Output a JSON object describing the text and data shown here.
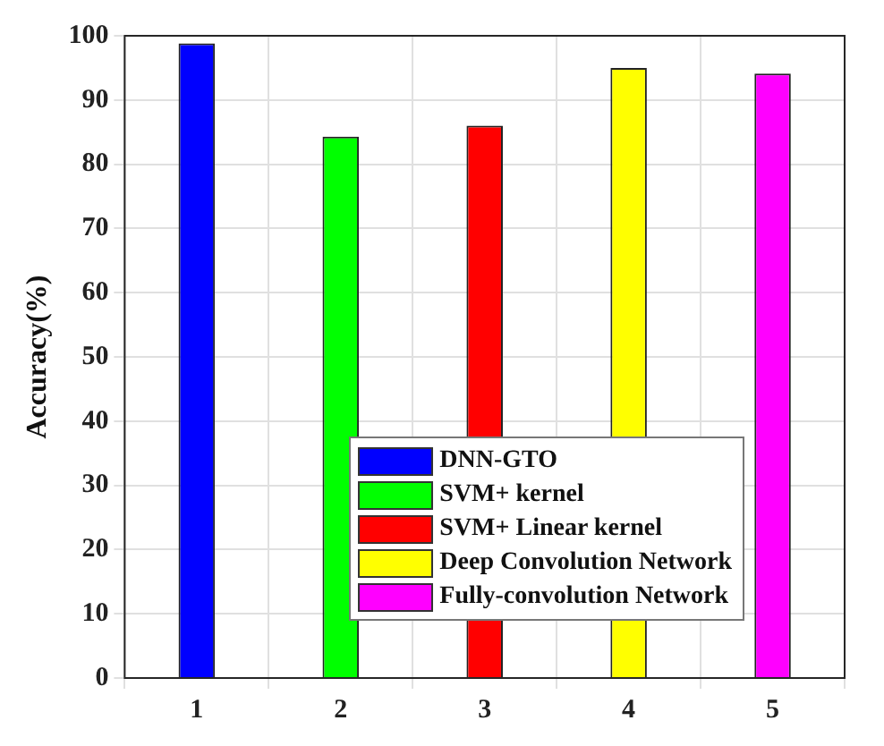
{
  "chart_data": {
    "type": "bar",
    "ylabel": "Accuracy(%)",
    "categories": [
      "1",
      "2",
      "3",
      "4",
      "5"
    ],
    "series": [
      {
        "name": "DNN-GTO",
        "color": "#0000ff",
        "values": [
          98.8,
          null,
          null,
          null,
          null
        ]
      },
      {
        "name": "SVM+ kernel",
        "color": "#00ff00",
        "values": [
          null,
          84.3,
          null,
          null,
          null
        ]
      },
      {
        "name": "SVM+ Linear kernel",
        "color": "#ff0000",
        "values": [
          null,
          null,
          86,
          null,
          null
        ]
      },
      {
        "name": "Deep Convolution Network",
        "color": "#ffff00",
        "values": [
          null,
          null,
          null,
          95,
          null
        ]
      },
      {
        "name": "Fully-convolution Network",
        "color": "#ff00ff",
        "values": [
          null,
          null,
          null,
          null,
          94.1
        ]
      }
    ],
    "ylim": [
      0,
      100
    ],
    "yticks": [
      0,
      10,
      20,
      30,
      40,
      50,
      60,
      70,
      80,
      90,
      100
    ],
    "grid": true,
    "legend": "bottom right"
  }
}
